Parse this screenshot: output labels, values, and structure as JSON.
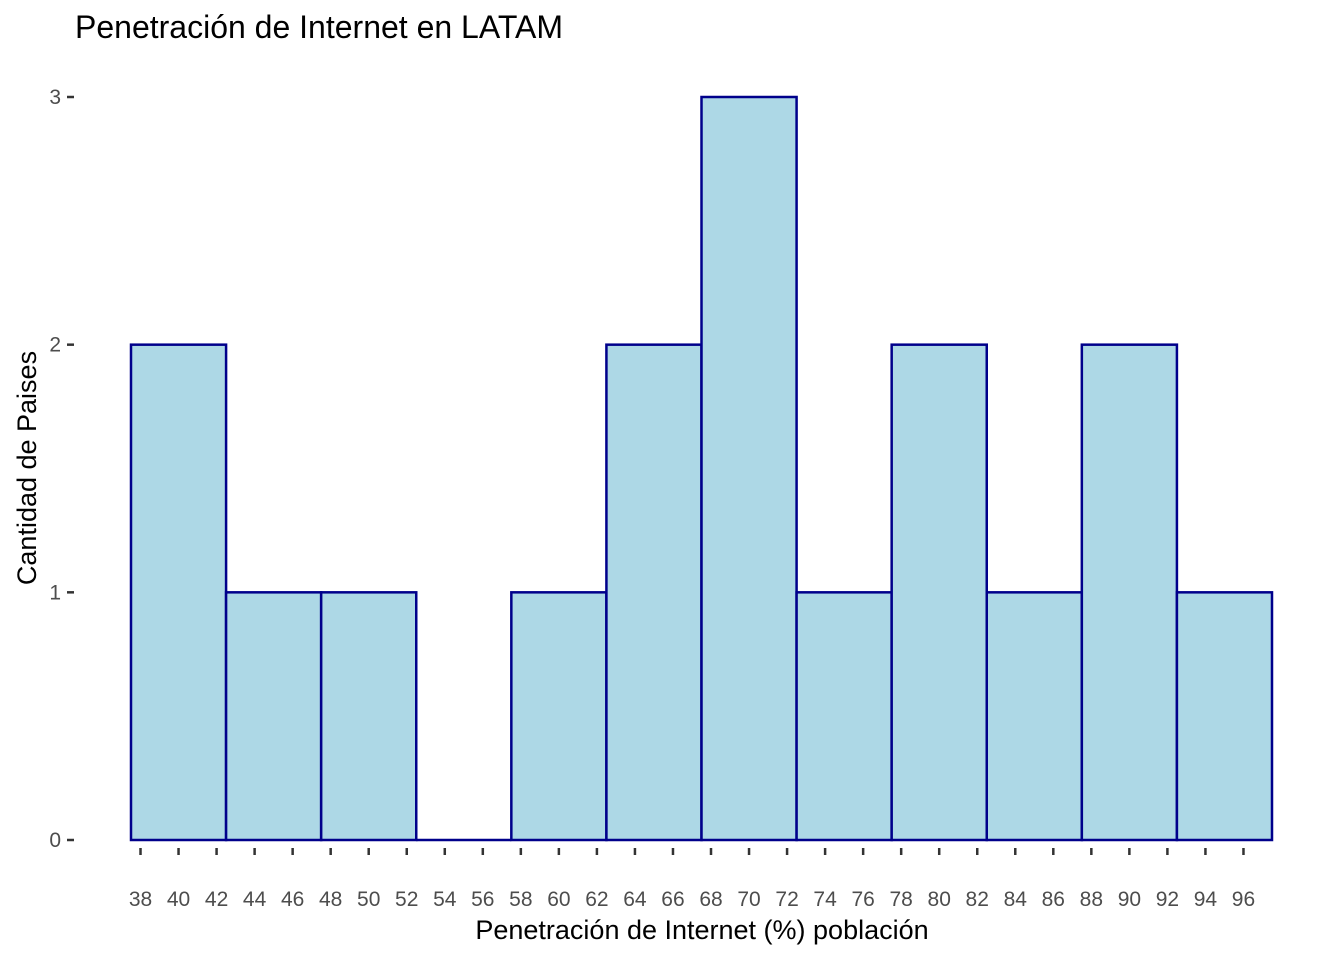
{
  "chart_data": {
    "type": "bar",
    "title": "Penetración de Internet en LATAM",
    "xlabel": "Penetración de Internet (%) población",
    "ylabel": "Cantidad de Paises",
    "bin_width": 5,
    "bins": [
      {
        "start": 37.5,
        "end": 42.5,
        "count": 2
      },
      {
        "start": 42.5,
        "end": 47.5,
        "count": 1
      },
      {
        "start": 47.5,
        "end": 52.5,
        "count": 1
      },
      {
        "start": 52.5,
        "end": 57.5,
        "count": 0
      },
      {
        "start": 57.5,
        "end": 62.5,
        "count": 1
      },
      {
        "start": 62.5,
        "end": 67.5,
        "count": 2
      },
      {
        "start": 67.5,
        "end": 72.5,
        "count": 3
      },
      {
        "start": 72.5,
        "end": 77.5,
        "count": 1
      },
      {
        "start": 77.5,
        "end": 82.5,
        "count": 2
      },
      {
        "start": 82.5,
        "end": 87.5,
        "count": 1
      },
      {
        "start": 87.5,
        "end": 92.5,
        "count": 2
      },
      {
        "start": 92.5,
        "end": 97.5,
        "count": 1
      }
    ],
    "xlim": [
      37.5,
      97.5
    ],
    "ylim": [
      0,
      3
    ],
    "x_ticks": [
      38,
      40,
      42,
      44,
      46,
      48,
      50,
      52,
      54,
      56,
      58,
      60,
      62,
      64,
      66,
      68,
      70,
      72,
      74,
      76,
      78,
      80,
      82,
      84,
      86,
      88,
      90,
      92,
      94,
      96
    ],
    "y_ticks": [
      0,
      1,
      2,
      3
    ],
    "grid": false,
    "legend": "none",
    "colors": {
      "fill": "#add8e6",
      "outline": "#00008b",
      "tick_text": "#4d4d4d",
      "background": "#ffffff"
    }
  }
}
